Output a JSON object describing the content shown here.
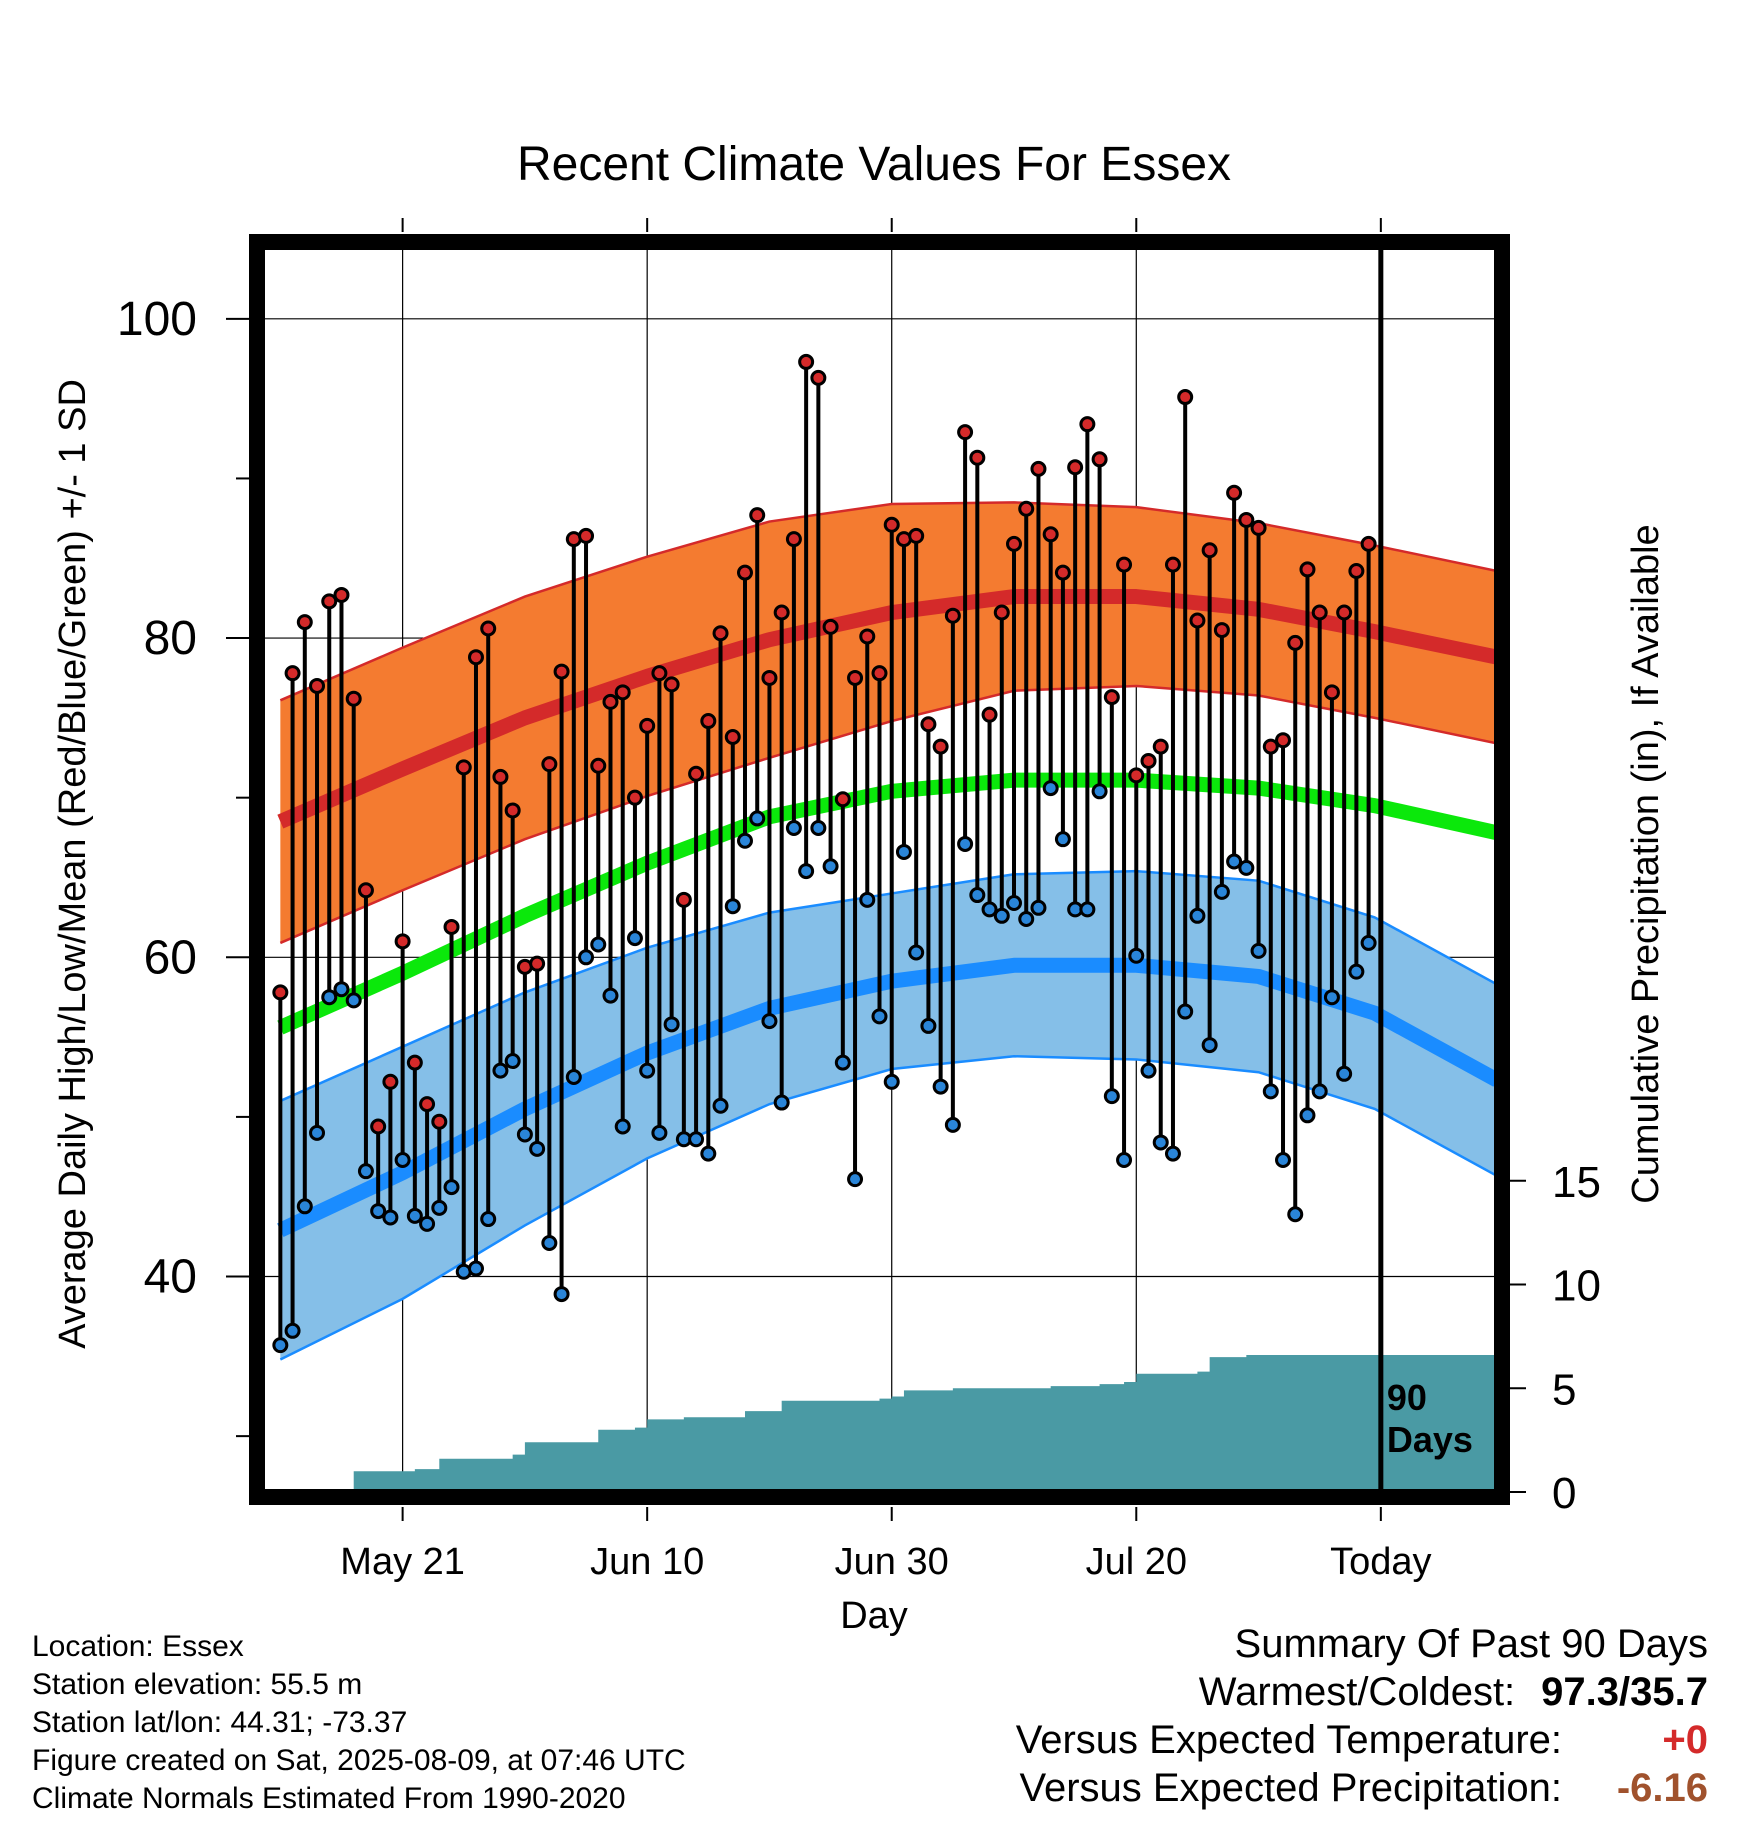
{
  "chart_data": {
    "type": "line",
    "title": "Recent Climate Values For Essex",
    "xlabel": "Day",
    "ylabel": "Average Daily High/Low/Mean (Red/Blue/Green) +/- 1 SD",
    "y2label": "Cumulative Precipitation (in), If Available",
    "x_tick_labels": [
      "May 21",
      "Jun 10",
      "Jun 30",
      "Jul 20",
      "Today"
    ],
    "x_tick_days": [
      10,
      30,
      50,
      70,
      90
    ],
    "y_ticks": [
      40,
      60,
      80,
      100
    ],
    "y2_ticks": [
      0,
      5,
      10,
      15
    ],
    "xlim": [
      -1.5,
      99.5
    ],
    "ylim": [
      26.5,
      104.5
    ],
    "y2lim": [
      0,
      60
    ],
    "grid": true,
    "today_marker_label": "90\nDays",
    "days": [
      0,
      1,
      2,
      3,
      4,
      5,
      6,
      7,
      8,
      9,
      10,
      11,
      12,
      13,
      14,
      15,
      16,
      17,
      18,
      19,
      20,
      21,
      22,
      23,
      24,
      25,
      26,
      27,
      28,
      29,
      30,
      31,
      32,
      33,
      34,
      35,
      36,
      37,
      38,
      39,
      40,
      41,
      42,
      43,
      44,
      45,
      46,
      47,
      48,
      49,
      50,
      51,
      52,
      53,
      54,
      55,
      56,
      57,
      58,
      59,
      60,
      61,
      62,
      63,
      64,
      65,
      66,
      67,
      68,
      69,
      70,
      71,
      72,
      73,
      74,
      75,
      76,
      77,
      78,
      79,
      80,
      81,
      82,
      83,
      84,
      85,
      86,
      87,
      88,
      89
    ],
    "daily_high": [
      57.8,
      77.8,
      81.0,
      77.0,
      82.3,
      82.7,
      76.2,
      64.2,
      49.4,
      52.2,
      61.0,
      53.4,
      50.8,
      49.7,
      61.9,
      71.9,
      78.8,
      80.6,
      71.3,
      69.2,
      59.4,
      59.6,
      72.1,
      77.9,
      86.2,
      86.4,
      72.0,
      76.0,
      76.6,
      70.0,
      74.5,
      77.8,
      77.1,
      63.6,
      71.5,
      74.8,
      80.3,
      73.8,
      84.1,
      87.7,
      77.5,
      81.6,
      86.2,
      97.3,
      96.3,
      80.7,
      69.9,
      77.5,
      80.1,
      77.8,
      87.1,
      86.2,
      86.4,
      74.6,
      73.2,
      81.4,
      92.9,
      91.3,
      75.2,
      81.6,
      85.9,
      88.1,
      90.6,
      86.5,
      84.1,
      90.7,
      93.4,
      91.2,
      76.3,
      84.6,
      71.4,
      72.3,
      73.2,
      84.6,
      95.1,
      81.1,
      85.5,
      80.5,
      89.1,
      87.4,
      86.9,
      73.2,
      73.6,
      79.7,
      84.3,
      81.6,
      76.6,
      81.6,
      84.2,
      85.9
    ],
    "daily_low": [
      35.7,
      36.6,
      44.4,
      49.0,
      57.5,
      58.0,
      57.3,
      46.6,
      44.1,
      43.7,
      47.3,
      43.8,
      43.3,
      44.3,
      45.6,
      40.3,
      40.5,
      43.6,
      52.9,
      53.5,
      48.9,
      48.0,
      42.1,
      38.9,
      52.5,
      60.0,
      60.8,
      57.6,
      49.4,
      61.2,
      52.9,
      49.0,
      55.8,
      48.6,
      48.6,
      47.7,
      50.7,
      63.2,
      67.3,
      68.7,
      56.0,
      50.9,
      68.1,
      65.4,
      68.1,
      65.7,
      53.4,
      46.1,
      63.6,
      56.3,
      52.2,
      66.6,
      60.3,
      55.7,
      51.9,
      49.5,
      67.1,
      63.9,
      63.0,
      62.6,
      63.4,
      62.4,
      63.1,
      70.6,
      67.4,
      63.0,
      63.0,
      70.4,
      51.3,
      47.3,
      60.1,
      52.9,
      48.4,
      47.7,
      56.6,
      62.6,
      54.5,
      64.1,
      66.0,
      65.6,
      60.4,
      51.6,
      47.3,
      43.9,
      50.1,
      51.6,
      57.5,
      52.7,
      59.1,
      60.9
    ],
    "normal_curve_days": [
      0,
      10,
      20,
      30,
      40,
      50,
      60,
      70,
      80,
      89.5,
      99.5
    ],
    "normal_high": [
      68.5,
      71.8,
      75.0,
      77.6,
      79.9,
      81.6,
      82.6,
      82.6,
      81.8,
      80.4,
      78.8
    ],
    "normal_high_sd": [
      7.6,
      7.6,
      7.6,
      7.5,
      7.4,
      6.8,
      5.9,
      5.6,
      5.4,
      5.4,
      5.4
    ],
    "normal_low": [
      42.9,
      46.5,
      50.5,
      54.0,
      56.8,
      58.5,
      59.5,
      59.5,
      58.8,
      56.5,
      52.3
    ],
    "normal_low_sd": [
      8.1,
      7.9,
      7.3,
      6.6,
      6.0,
      5.5,
      5.7,
      5.9,
      6.0,
      6.0,
      6.0
    ],
    "normal_mean": [
      55.6,
      59.0,
      62.6,
      65.9,
      68.8,
      70.4,
      71.1,
      71.1,
      70.6,
      69.5,
      67.8
    ],
    "precip_steps": [
      [
        0,
        0.0
      ],
      [
        5,
        0.0
      ],
      [
        6,
        1.0
      ],
      [
        11,
        1.1
      ],
      [
        13,
        1.6
      ],
      [
        16,
        1.6
      ],
      [
        19,
        1.8
      ],
      [
        20,
        2.4
      ],
      [
        25,
        2.4
      ],
      [
        26,
        3.0
      ],
      [
        29,
        3.1
      ],
      [
        30,
        3.5
      ],
      [
        33,
        3.6
      ],
      [
        37,
        3.6
      ],
      [
        38,
        3.9
      ],
      [
        40,
        3.9
      ],
      [
        41,
        4.4
      ],
      [
        49,
        4.5
      ],
      [
        50,
        4.6
      ],
      [
        51,
        4.9
      ],
      [
        55,
        5.0
      ],
      [
        62,
        5.0
      ],
      [
        63,
        5.1
      ],
      [
        67,
        5.2
      ],
      [
        69,
        5.3
      ],
      [
        70,
        5.7
      ],
      [
        75,
        5.8
      ],
      [
        76,
        6.5
      ],
      [
        79,
        6.6
      ],
      [
        99.5,
        6.6
      ]
    ],
    "colors": {
      "high_band": "#f47b30",
      "high_line": "#d42a2a",
      "low_band": "#85bfe8",
      "low_line": "#1a8cff",
      "mean_line": "#0be80b",
      "precip_fill": "#4a9aa4",
      "high_dot": "#d42a2a",
      "low_dot": "#2a85d8"
    }
  },
  "info": {
    "location": "Location: Essex",
    "elevation": "Station elevation: 55.5 m",
    "latlon": "Station lat/lon: 44.31; -73.37",
    "created": "Figure created on Sat, 2025-08-09, at 07:46 UTC",
    "normals": "Climate Normals Estimated From 1990-2020"
  },
  "summary": {
    "title": "Summary Of Past 90 Days",
    "warmest_label": "Warmest/Coldest:",
    "warmest_value": "97.3/35.7",
    "temp_label": "Versus Expected Temperature:",
    "temp_value": "+0",
    "temp_color": "#d42a2a",
    "precip_label": "Versus Expected Precipitation:",
    "precip_value": "-6.16",
    "precip_color": "#a0522d"
  }
}
